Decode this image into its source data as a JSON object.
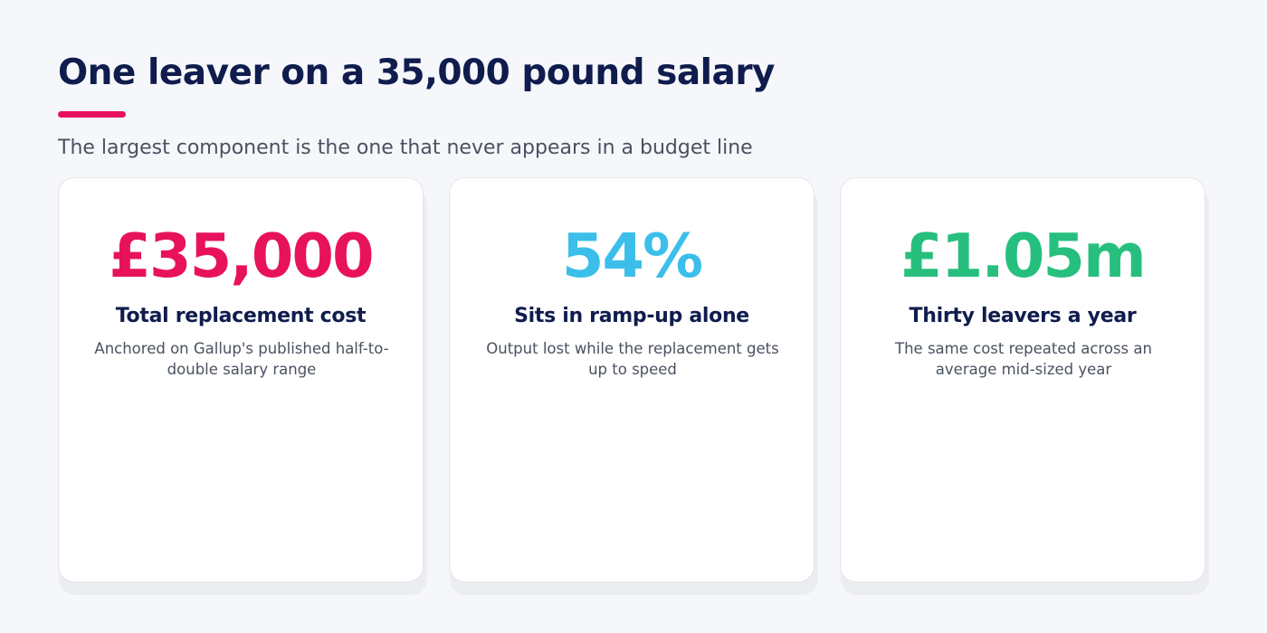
{
  "header": {
    "title": "One leaver on a 35,000 pound salary",
    "subtitle": "The largest component is the one that never appears in a budget line"
  },
  "colors": {
    "accent": "#e8125c",
    "pink": "#e8125c",
    "blue": "#3bbfea",
    "green": "#27bf7e",
    "navy": "#0f1c4d"
  },
  "cards": [
    {
      "value": "£35,000",
      "label": "Total replacement cost",
      "description": "Anchored on Gallup's published half-to-double salary range",
      "color": "#e8125c"
    },
    {
      "value": "54%",
      "label": "Sits in ramp-up alone",
      "description": "Output lost while the replacement gets up to speed",
      "color": "#3bbfea"
    },
    {
      "value": "£1.05m",
      "label": "Thirty leavers a year",
      "description": "The same cost repeated across an average mid-sized year",
      "color": "#27bf7e"
    }
  ]
}
